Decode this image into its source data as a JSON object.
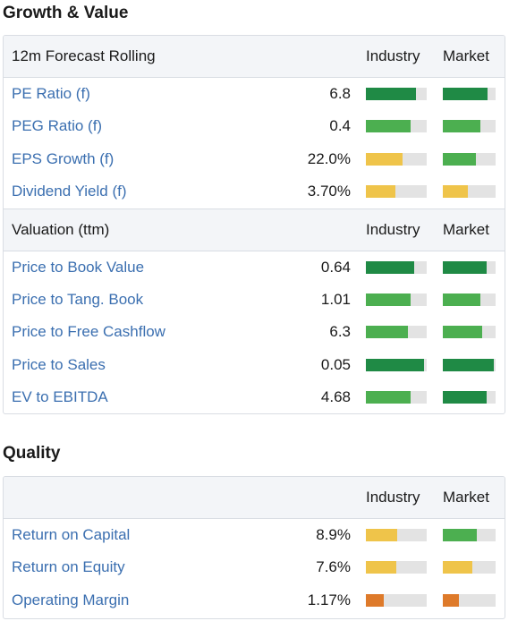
{
  "colors": {
    "dark_green": "#1f8a45",
    "green": "#4caf50",
    "yellow": "#efc44a",
    "orange": "#de7a2a",
    "track": "#e3e3e3",
    "link": "#3b6fb0"
  },
  "growth_value": {
    "title": "Growth & Value",
    "forecast": {
      "header": "12m Forecast Rolling",
      "col_industry": "Industry",
      "col_market": "Market",
      "rows": [
        {
          "name": "PE Ratio (f)",
          "value": "6.8",
          "industry": 0.82,
          "industry_color": "dark_green",
          "market": 0.85,
          "market_color": "dark_green"
        },
        {
          "name": "PEG Ratio (f)",
          "value": "0.4",
          "industry": 0.73,
          "industry_color": "green",
          "market": 0.72,
          "market_color": "green"
        },
        {
          "name": "EPS Growth (f)",
          "value": "22.0%",
          "industry": 0.6,
          "industry_color": "yellow",
          "market": 0.63,
          "market_color": "green"
        },
        {
          "name": "Dividend Yield (f)",
          "value": "3.70%",
          "industry": 0.48,
          "industry_color": "yellow",
          "market": 0.47,
          "market_color": "yellow"
        }
      ]
    },
    "valuation": {
      "header": "Valuation (ttm)",
      "col_industry": "Industry",
      "col_market": "Market",
      "rows": [
        {
          "name": "Price to Book Value",
          "value": "0.64",
          "industry": 0.8,
          "industry_color": "dark_green",
          "market": 0.83,
          "market_color": "dark_green"
        },
        {
          "name": "Price to Tang. Book",
          "value": "1.01",
          "industry": 0.74,
          "industry_color": "green",
          "market": 0.72,
          "market_color": "green"
        },
        {
          "name": "Price to Free Cashflow",
          "value": "6.3",
          "industry": 0.69,
          "industry_color": "green",
          "market": 0.75,
          "market_color": "green"
        },
        {
          "name": "Price to Sales",
          "value": "0.05",
          "industry": 0.95,
          "industry_color": "dark_green",
          "market": 0.97,
          "market_color": "dark_green"
        },
        {
          "name": "EV to EBITDA",
          "value": "4.68",
          "industry": 0.73,
          "industry_color": "green",
          "market": 0.83,
          "market_color": "dark_green"
        }
      ]
    }
  },
  "quality": {
    "title": "Quality",
    "header": "",
    "col_industry": "Industry",
    "col_market": "Market",
    "rows": [
      {
        "name": "Return on Capital",
        "value": "8.9%",
        "industry": 0.52,
        "industry_color": "yellow",
        "market": 0.65,
        "market_color": "green"
      },
      {
        "name": "Return on Equity",
        "value": "7.6%",
        "industry": 0.5,
        "industry_color": "yellow",
        "market": 0.56,
        "market_color": "yellow"
      },
      {
        "name": "Operating Margin",
        "value": "1.17%",
        "industry": 0.3,
        "industry_color": "orange",
        "market": 0.3,
        "market_color": "orange"
      }
    ]
  }
}
